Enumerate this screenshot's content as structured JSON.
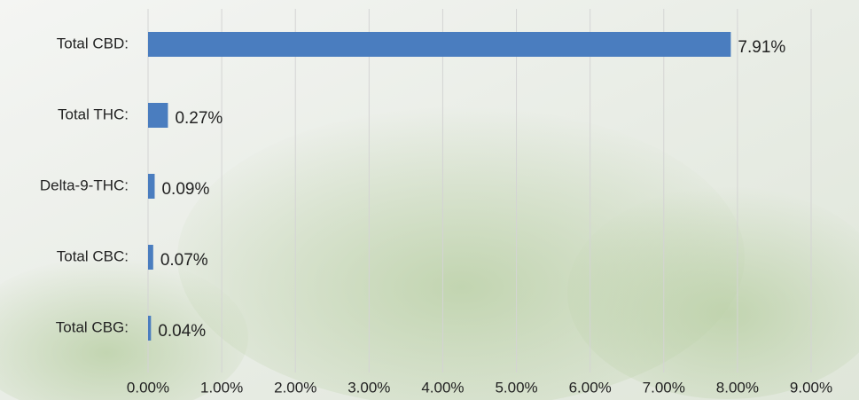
{
  "chart_data": {
    "type": "hbar",
    "categories": [
      "Total CBD:",
      "Total THC:",
      "Delta-9-THC:",
      "Total CBC:",
      "Total CBG:"
    ],
    "values": [
      7.91,
      0.27,
      0.09,
      0.07,
      0.04
    ],
    "value_labels": [
      "7.91%",
      "0.27%",
      "0.09%",
      "0.07%",
      "0.04%"
    ],
    "color": "#4a7dbf",
    "xlim": [
      0,
      9
    ],
    "xticks": [
      {
        "value": 0,
        "label": "0.00%"
      },
      {
        "value": 1,
        "label": "1.00%"
      },
      {
        "value": 2,
        "label": "2.00%"
      },
      {
        "value": 3,
        "label": "3.00%"
      },
      {
        "value": 4,
        "label": "4.00%"
      },
      {
        "value": 5,
        "label": "5.00%"
      },
      {
        "value": 6,
        "label": "6.00%"
      },
      {
        "value": 7,
        "label": "7.00%"
      },
      {
        "value": 8,
        "label": "8.00%"
      },
      {
        "value": 9,
        "label": "9.00%"
      }
    ],
    "grid": true
  }
}
